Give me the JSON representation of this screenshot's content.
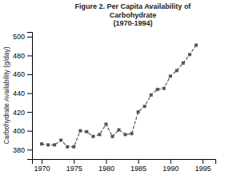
{
  "chart_data": {
    "type": "line",
    "title": "Figure 2. Per Capita Availability of\nCarbohydrate\n(1970-1994)",
    "y_label": "Carbohydrate Availability (g/day)",
    "x": [
      1970,
      1971,
      1972,
      1973,
      1974,
      1975,
      1976,
      1977,
      1978,
      1979,
      1980,
      1981,
      1982,
      1983,
      1984,
      1985,
      1986,
      1987,
      1988,
      1989,
      1990,
      1991,
      1992,
      1993,
      1994
    ],
    "values": [
      386,
      385,
      385,
      390,
      383,
      383,
      400,
      399,
      394,
      396,
      407,
      394,
      401,
      396,
      397,
      420,
      426,
      438,
      444,
      445,
      458,
      464,
      472,
      481,
      491
    ],
    "color": "#555555",
    "marker": "square",
    "line_style": "dashed",
    "xlim": [
      1968.5,
      1997
    ],
    "xticks": [
      1970,
      1975,
      1980,
      1985,
      1990,
      1995
    ],
    "ylim": [
      370,
      505
    ],
    "yticks": [
      380,
      400,
      420,
      440,
      460,
      480,
      500
    ]
  }
}
